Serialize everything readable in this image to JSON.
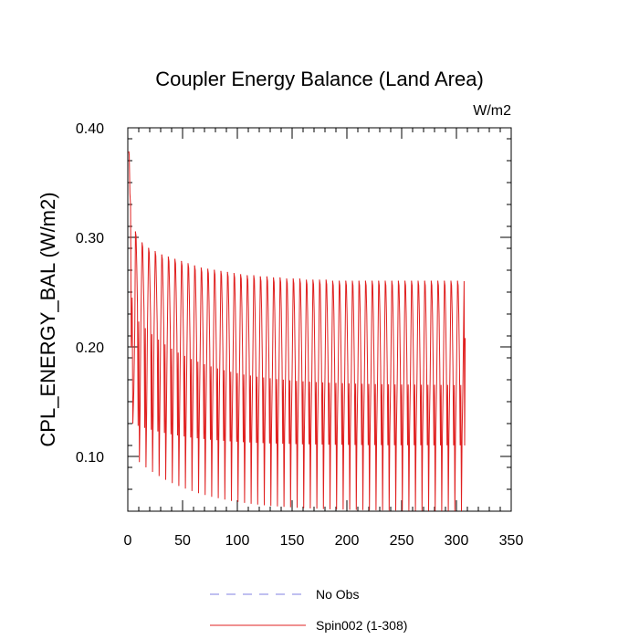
{
  "chart_data": {
    "type": "line",
    "title": "Coupler Energy Balance (Land Area)",
    "units_label": "W/m2",
    "ylabel": "CPL_ENERGY_BAL  (W/m2)",
    "xlabel": "",
    "xlim": [
      0,
      350
    ],
    "ylim": [
      0.05,
      0.4
    ],
    "x_ticks": [
      0,
      50,
      100,
      150,
      200,
      250,
      300,
      350
    ],
    "x_tick_labels": [
      "0",
      "50",
      "100",
      "150",
      "200",
      "250",
      "300",
      "350"
    ],
    "y_ticks": [
      0.1,
      0.2,
      0.3,
      0.4
    ],
    "y_tick_labels": [
      "0.10",
      "0.20",
      "0.30",
      "0.40"
    ],
    "grid": false,
    "legend_position": "bottom-center",
    "series": [
      {
        "name": "No Obs",
        "color": "#8080e0",
        "style": "dashed",
        "x": [],
        "y": []
      },
      {
        "name": "Spin002 (1-308)",
        "color": "#e02020",
        "style": "solid",
        "seasonal_cycle_months": 12,
        "n_points": 308,
        "annual_peak_x": [
          1,
          7,
          13,
          19,
          25,
          31,
          37,
          43,
          49,
          55,
          61,
          67,
          73,
          79,
          85,
          91,
          97,
          103,
          109,
          115,
          121,
          127,
          133,
          139,
          145,
          151,
          157,
          163,
          169,
          175,
          181,
          187,
          193,
          199,
          205,
          211,
          217,
          223,
          229,
          235,
          241,
          247,
          253,
          259,
          265,
          271,
          277,
          283,
          289,
          295,
          301,
          307
        ],
        "annual_peak_y": [
          0.378,
          0.305,
          0.295,
          0.29,
          0.287,
          0.284,
          0.282,
          0.28,
          0.278,
          0.276,
          0.274,
          0.272,
          0.271,
          0.27,
          0.269,
          0.268,
          0.267,
          0.266,
          0.265,
          0.265,
          0.264,
          0.264,
          0.263,
          0.263,
          0.262,
          0.262,
          0.262,
          0.261,
          0.261,
          0.261,
          0.261,
          0.26,
          0.26,
          0.26,
          0.26,
          0.26,
          0.26,
          0.26,
          0.26,
          0.26,
          0.26,
          0.26,
          0.26,
          0.26,
          0.26,
          0.26,
          0.26,
          0.26,
          0.26,
          0.26,
          0.26,
          0.208
        ],
        "secondary_peak_y_start": 0.245,
        "secondary_peak_y_end": 0.18,
        "secondary_trough_y_start": 0.13,
        "secondary_trough_y_end": 0.11,
        "annual_min_y_start": 0.1,
        "annual_min_y_end": 0.05
      }
    ]
  }
}
